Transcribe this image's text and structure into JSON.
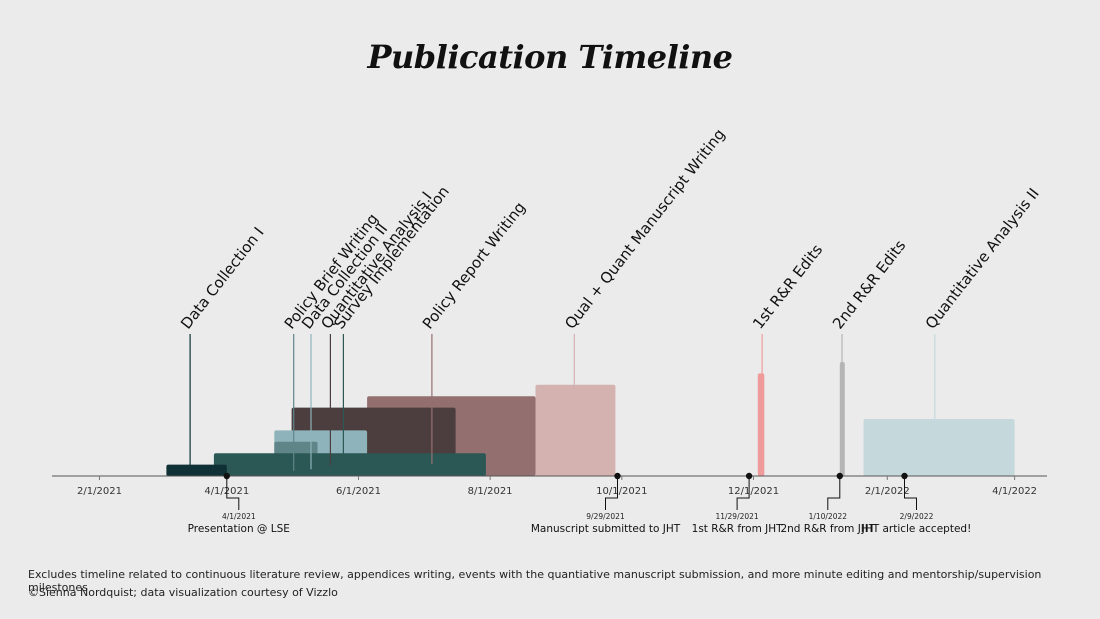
{
  "chart_data": {
    "type": "timeline",
    "title": "Publication Timeline",
    "x_axis": {
      "min": "2021-01-10",
      "max": "2022-04-16",
      "ticks": [
        {
          "date": "2021-02-01",
          "label": "2/1/2021"
        },
        {
          "date": "2021-04-01",
          "label": "4/1/2021"
        },
        {
          "date": "2021-06-01",
          "label": "6/1/2021"
        },
        {
          "date": "2021-08-01",
          "label": "8/1/2021"
        },
        {
          "date": "2021-10-01",
          "label": "10/1/2021"
        },
        {
          "date": "2021-12-01",
          "label": "12/1/2021"
        },
        {
          "date": "2022-02-01",
          "label": "2/1/2022"
        },
        {
          "date": "2022-04-01",
          "label": "4/1/2022"
        }
      ]
    },
    "phases": [
      {
        "label": "Data Collection I",
        "start": "2021-03-04",
        "end": "2021-04-01",
        "color": "#0f3035",
        "height": 0.1,
        "label_date": "2021-03-15"
      },
      {
        "label": "Policy Brief Writing",
        "start": "2021-04-23",
        "end": "2021-05-13",
        "color": "#5f8589",
        "height": 0.3,
        "label_date": "2021-05-02"
      },
      {
        "label": "Data Collection II",
        "start": "2021-04-23",
        "end": "2021-06-05",
        "color": "#8eb3ba",
        "height": 0.4,
        "label_date": "2021-05-10"
      },
      {
        "label": "Quantitative Analysis I",
        "start": "2021-05-01",
        "end": "2021-07-16",
        "color": "#4c3e3e",
        "height": 0.6,
        "label_date": "2021-05-19"
      },
      {
        "label": "Survey Implementation",
        "start": "2021-03-26",
        "end": "2021-07-30",
        "color": "#2b5855",
        "height": 0.2,
        "label_date": "2021-05-25"
      },
      {
        "label": "Policy Report Writing",
        "start": "2021-06-05",
        "end": "2021-08-22",
        "color": "#946f70",
        "height": 0.7,
        "label_date": "2021-07-05"
      },
      {
        "label": "Qual + Quant Manuscript Writing",
        "start": "2021-08-22",
        "end": "2021-09-28",
        "color": "#d3b2b0",
        "height": 0.8,
        "label_date": "2021-09-09"
      },
      {
        "label": "1st R&R Edits",
        "start": "2021-12-03",
        "end": "2021-12-06",
        "color": "#f09b9b",
        "height": 0.9,
        "label_date": "2021-12-05"
      },
      {
        "label": "2nd R&R Edits",
        "start": "2022-01-10",
        "end": "2022-01-12",
        "color": "#b5b5b5",
        "height": 1.0,
        "label_date": "2022-01-11"
      },
      {
        "label": "Quantitative Analysis II",
        "start": "2022-01-21",
        "end": "2022-04-01",
        "color": "#c5d9dd",
        "height": 0.5,
        "label_date": "2022-02-23"
      }
    ],
    "milestones": [
      {
        "date": "2021-04-01",
        "date_label": "4/1/2021",
        "label": "Presentation @ LSE",
        "side": "right"
      },
      {
        "date": "2021-09-29",
        "date_label": "9/29/2021",
        "label": "Manuscript submitted to JHT",
        "side": "left"
      },
      {
        "date": "2021-11-29",
        "date_label": "11/29/2021",
        "label": "1st R&R from JHT",
        "side": "left"
      },
      {
        "date": "2022-01-10",
        "date_label": "1/10/2022",
        "label": "2nd R&R from JHT",
        "side": "left"
      },
      {
        "date": "2022-02-09",
        "date_label": "2/9/2022",
        "label": "JHT article accepted!",
        "side": "right"
      }
    ]
  },
  "footnote": "Excludes timeline related to  continuous literature review, appendices writing, events with the quantiative manuscript submission, and more minute editing and mentorship/supervision milestones",
  "credit": "©Sienna Nordquist; data visualization courtesy of Vizzlo"
}
